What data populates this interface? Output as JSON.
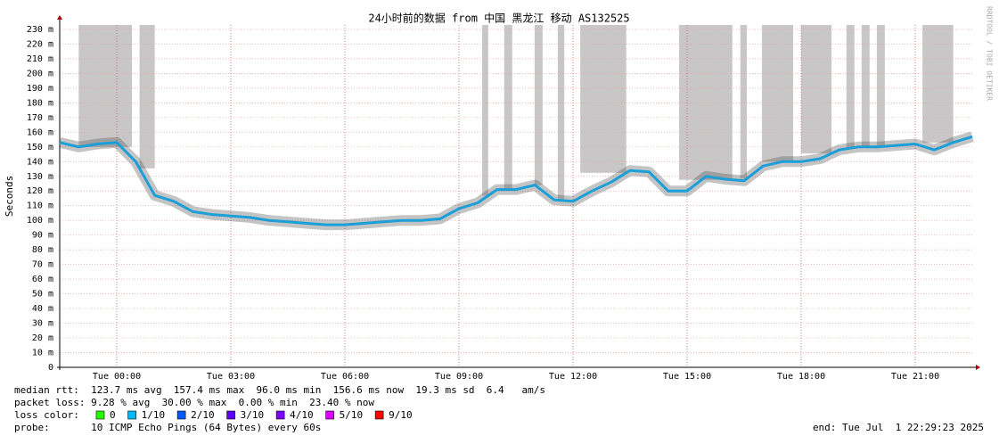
{
  "chart_data": {
    "type": "line",
    "title": "24小时前的数据 from 中国 黑龙江 移动 AS132525",
    "y_label": "Seconds",
    "watermark": "RRDTOOL / TOBI OETIKER",
    "xlim": [
      -1.5,
      22.5
    ],
    "xticks": [
      {
        "value": 0,
        "label": "Tue 00:00"
      },
      {
        "value": 3,
        "label": "Tue 03:00"
      },
      {
        "value": 6,
        "label": "Tue 06:00"
      },
      {
        "value": 9,
        "label": "Tue 09:00"
      },
      {
        "value": 12,
        "label": "Tue 12:00"
      },
      {
        "value": 15,
        "label": "Tue 15:00"
      },
      {
        "value": 18,
        "label": "Tue 18:00"
      },
      {
        "value": 21,
        "label": "Tue 21:00"
      }
    ],
    "ylim": [
      0,
      0.233
    ],
    "yticks": [
      {
        "value": 0,
        "label": "0"
      },
      {
        "value": 0.01,
        "label": "10 m"
      },
      {
        "value": 0.02,
        "label": "20 m"
      },
      {
        "value": 0.03,
        "label": "30 m"
      },
      {
        "value": 0.04,
        "label": "40 m"
      },
      {
        "value": 0.05,
        "label": "50 m"
      },
      {
        "value": 0.06,
        "label": "60 m"
      },
      {
        "value": 0.07,
        "label": "70 m"
      },
      {
        "value": 0.08,
        "label": "80 m"
      },
      {
        "value": 0.09,
        "label": "90 m"
      },
      {
        "value": 0.1,
        "label": "100 m"
      },
      {
        "value": 0.11,
        "label": "110 m"
      },
      {
        "value": 0.12,
        "label": "120 m"
      },
      {
        "value": 0.13,
        "label": "130 m"
      },
      {
        "value": 0.14,
        "label": "140 m"
      },
      {
        "value": 0.15,
        "label": "150 m"
      },
      {
        "value": 0.16,
        "label": "160 m"
      },
      {
        "value": 0.17,
        "label": "170 m"
      },
      {
        "value": 0.18,
        "label": "180 m"
      },
      {
        "value": 0.19,
        "label": "190 m"
      },
      {
        "value": 0.2,
        "label": "200 m"
      },
      {
        "value": 0.21,
        "label": "210 m"
      },
      {
        "value": 0.22,
        "label": "220 m"
      },
      {
        "value": 0.23,
        "label": "230 m"
      }
    ],
    "grid": true,
    "x": [
      -1.5,
      -1,
      -0.5,
      0,
      0.5,
      1,
      1.5,
      2,
      2.5,
      3,
      3.5,
      4,
      4.5,
      5,
      5.5,
      6,
      6.5,
      7,
      7.5,
      8,
      8.5,
      9,
      9.5,
      10,
      10.5,
      11,
      11.5,
      12,
      12.5,
      13,
      13.5,
      14,
      14.5,
      15,
      15.5,
      16,
      16.5,
      17,
      17.5,
      18,
      18.5,
      19,
      19.5,
      20,
      20.5,
      21,
      21.5,
      22,
      22.5
    ],
    "series": [
      {
        "color": "#1a9fd8",
        "values": [
          0.153,
          0.15,
          0.152,
          0.153,
          0.14,
          0.117,
          0.113,
          0.106,
          0.104,
          0.103,
          0.102,
          0.1,
          0.099,
          0.098,
          0.097,
          0.097,
          0.098,
          0.099,
          0.1,
          0.1,
          0.101,
          0.108,
          0.112,
          0.121,
          0.121,
          0.124,
          0.114,
          0.113,
          0.12,
          0.126,
          0.134,
          0.133,
          0.12,
          0.12,
          0.13,
          0.128,
          0.127,
          0.137,
          0.14,
          0.14,
          0.142,
          0.148,
          0.15,
          0.15,
          0.151,
          0.152,
          0.148,
          0.153,
          0.157
        ]
      }
    ],
    "loss_spans": [
      [
        -1.0,
        0.4
      ],
      [
        0.6,
        1.0
      ],
      [
        9.61,
        9.77
      ],
      [
        10.19,
        10.4
      ],
      [
        10.99,
        11.2
      ],
      [
        11.6,
        11.77
      ],
      [
        12.19,
        13.4
      ],
      [
        14.79,
        16.19
      ],
      [
        16.4,
        16.57
      ],
      [
        16.97,
        17.79
      ],
      [
        18.0,
        18.8
      ],
      [
        19.19,
        19.4
      ],
      [
        19.59,
        19.8
      ],
      [
        19.99,
        20.2
      ],
      [
        21.19,
        22.0
      ]
    ],
    "loss_span_color": "#c8c6c7",
    "footer": {
      "median_rtt": "median rtt:  123.7 ms avg  157.4 ms max  96.0 ms min  156.6 ms now  19.3 ms sd  6.4   am/s",
      "packet_loss": "packet loss: 9.28 % avg  30.00 % max  0.00 % min  23.40 % now",
      "loss_color_label": "loss color:",
      "loss_colors": [
        {
          "label": "0",
          "color": "#26ff00"
        },
        {
          "label": "1/10",
          "color": "#00b8ff"
        },
        {
          "label": "2/10",
          "color": "#0059ff"
        },
        {
          "label": "3/10",
          "color": "#5e00ff"
        },
        {
          "label": "4/10",
          "color": "#7e00ff"
        },
        {
          "label": "5/10",
          "color": "#dd00ff"
        },
        {
          "label": "9/10",
          "color": "#ff0000"
        }
      ],
      "probe": "probe:       10 ICMP Echo Pings (64 Bytes) every 60s",
      "end": "end: Tue Jul  1 22:29:23 2025"
    }
  }
}
